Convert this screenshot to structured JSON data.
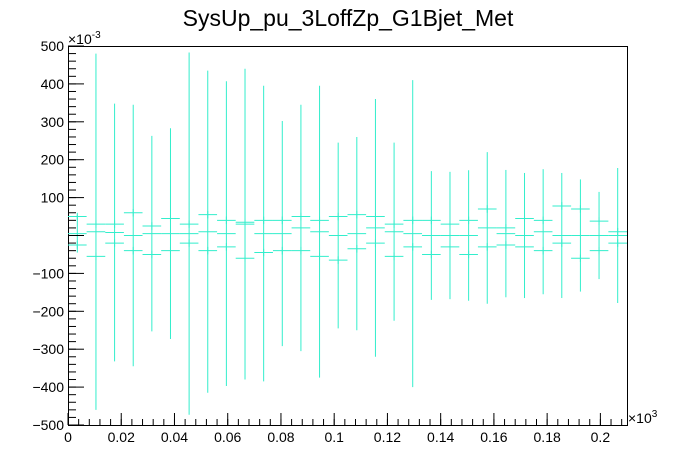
{
  "chart_data": {
    "type": "scatter",
    "title": "SysUp_pu_3LoffZp_G1Bjet_Met",
    "xlabel": "",
    "ylabel": "",
    "x_exponent_label": "×10",
    "x_exponent": "3",
    "y_exponent_label": "×10",
    "y_exponent": "-3",
    "xlim": [
      0,
      0.21
    ],
    "ylim": [
      -500,
      500
    ],
    "x_ticks": [
      {
        "value": 0,
        "label": "0"
      },
      {
        "value": 0.02,
        "label": "0.02"
      },
      {
        "value": 0.04,
        "label": "0.04"
      },
      {
        "value": 0.06,
        "label": "0.06"
      },
      {
        "value": 0.08,
        "label": "0.08"
      },
      {
        "value": 0.1,
        "label": "0.1"
      },
      {
        "value": 0.12,
        "label": "0.12"
      },
      {
        "value": 0.14,
        "label": "0.14"
      },
      {
        "value": 0.16,
        "label": "0.16"
      },
      {
        "value": 0.18,
        "label": "0.18"
      },
      {
        "value": 0.2,
        "label": "0.2"
      }
    ],
    "y_ticks": [
      {
        "value": -500,
        "label": "−500"
      },
      {
        "value": -400,
        "label": "−400"
      },
      {
        "value": -300,
        "label": "−300"
      },
      {
        "value": -200,
        "label": "−200"
      },
      {
        "value": -100,
        "label": "−100"
      },
      {
        "value": 100,
        "label": "100"
      },
      {
        "value": 200,
        "label": "200"
      },
      {
        "value": 300,
        "label": "300"
      },
      {
        "value": 400,
        "label": "400"
      },
      {
        "value": 500,
        "label": "500"
      }
    ],
    "grid": false,
    "color": "#33eecc",
    "bin_width": 0.007,
    "series": [
      {
        "points": [
          {
            "x": 0.0035,
            "y": 5,
            "err": 50
          },
          {
            "x": 0.0105,
            "y": 10,
            "err": 470
          },
          {
            "x": 0.0175,
            "y": 8,
            "err": 340
          },
          {
            "x": 0.0245,
            "y": 0,
            "err": 345
          },
          {
            "x": 0.0315,
            "y": 5,
            "err": 258
          },
          {
            "x": 0.0385,
            "y": 5,
            "err": 278
          },
          {
            "x": 0.0455,
            "y": 5,
            "err": 478
          },
          {
            "x": 0.0525,
            "y": 10,
            "err": 425
          },
          {
            "x": 0.0595,
            "y": 5,
            "err": 402
          },
          {
            "x": 0.0665,
            "y": 30,
            "err": 410
          },
          {
            "x": 0.0735,
            "y": 5,
            "err": 390
          },
          {
            "x": 0.0805,
            "y": 5,
            "err": 297
          },
          {
            "x": 0.0875,
            "y": 20,
            "err": 325
          },
          {
            "x": 0.0945,
            "y": 10,
            "err": 385
          },
          {
            "x": 0.1015,
            "y": 0,
            "err": 245
          },
          {
            "x": 0.1085,
            "y": 5,
            "err": 255
          },
          {
            "x": 0.1155,
            "y": 20,
            "err": 340
          },
          {
            "x": 0.1225,
            "y": 10,
            "err": 235
          },
          {
            "x": 0.1295,
            "y": 5,
            "err": 405
          },
          {
            "x": 0.1365,
            "y": 0,
            "err": 170
          },
          {
            "x": 0.1435,
            "y": 0,
            "err": 168
          },
          {
            "x": 0.1505,
            "y": 0,
            "err": 172
          },
          {
            "x": 0.1575,
            "y": 20,
            "err": 200
          },
          {
            "x": 0.1645,
            "y": 5,
            "err": 168
          },
          {
            "x": 0.1715,
            "y": 0,
            "err": 165
          },
          {
            "x": 0.1785,
            "y": 10,
            "err": 165
          },
          {
            "x": 0.1855,
            "y": 0,
            "err": 165
          },
          {
            "x": 0.1925,
            "y": 0,
            "err": 148
          },
          {
            "x": 0.1995,
            "y": 0,
            "err": 115
          },
          {
            "x": 0.2065,
            "y": 0,
            "err": 178
          }
        ]
      },
      {
        "points": [
          {
            "x": 0.0035,
            "y": 50,
            "err": 10
          },
          {
            "x": 0.0105,
            "y": -55,
            "err": 10
          },
          {
            "x": 0.0175,
            "y": 30,
            "err": 10
          },
          {
            "x": 0.0245,
            "y": 60,
            "err": 10
          },
          {
            "x": 0.0315,
            "y": -50,
            "err": 10
          },
          {
            "x": 0.0385,
            "y": 45,
            "err": 10
          },
          {
            "x": 0.0455,
            "y": 30,
            "err": 10
          },
          {
            "x": 0.0525,
            "y": 55,
            "err": 10
          },
          {
            "x": 0.0595,
            "y": -30,
            "err": 10
          },
          {
            "x": 0.0665,
            "y": -60,
            "err": 10
          },
          {
            "x": 0.0735,
            "y": 40,
            "err": 10
          },
          {
            "x": 0.0805,
            "y": -40,
            "err": 10
          },
          {
            "x": 0.0875,
            "y": 50,
            "err": 10
          },
          {
            "x": 0.0945,
            "y": -55,
            "err": 10
          },
          {
            "x": 0.1015,
            "y": -65,
            "err": 10
          },
          {
            "x": 0.1085,
            "y": 55,
            "err": 10
          },
          {
            "x": 0.1155,
            "y": -20,
            "err": 10
          },
          {
            "x": 0.1225,
            "y": -55,
            "err": 10
          },
          {
            "x": 0.1295,
            "y": 40,
            "err": 10
          },
          {
            "x": 0.1365,
            "y": -50,
            "err": 10
          },
          {
            "x": 0.1435,
            "y": 30,
            "err": 10
          },
          {
            "x": 0.1505,
            "y": -50,
            "err": 10
          },
          {
            "x": 0.1575,
            "y": 70,
            "err": 10
          },
          {
            "x": 0.1645,
            "y": 20,
            "err": 10
          },
          {
            "x": 0.1715,
            "y": 45,
            "err": 10
          },
          {
            "x": 0.1785,
            "y": -40,
            "err": 10
          },
          {
            "x": 0.1855,
            "y": 78,
            "err": 10
          },
          {
            "x": 0.1925,
            "y": 70,
            "err": 10
          },
          {
            "x": 0.1995,
            "y": 38,
            "err": 10
          },
          {
            "x": 0.2065,
            "y": 10,
            "err": 10
          }
        ]
      },
      {
        "points": [
          {
            "x": 0.0035,
            "y": -25,
            "err": 10
          },
          {
            "x": 0.0105,
            "y": 30,
            "err": 10
          },
          {
            "x": 0.0175,
            "y": -20,
            "err": 10
          },
          {
            "x": 0.0245,
            "y": -40,
            "err": 10
          },
          {
            "x": 0.0315,
            "y": 25,
            "err": 10
          },
          {
            "x": 0.0385,
            "y": -40,
            "err": 10
          },
          {
            "x": 0.0455,
            "y": -20,
            "err": 10
          },
          {
            "x": 0.0525,
            "y": -40,
            "err": 10
          },
          {
            "x": 0.0595,
            "y": 40,
            "err": 10
          },
          {
            "x": 0.0665,
            "y": 35,
            "err": 10
          },
          {
            "x": 0.0735,
            "y": -45,
            "err": 10
          },
          {
            "x": 0.0805,
            "y": 40,
            "err": 10
          },
          {
            "x": 0.0875,
            "y": -40,
            "err": 10
          },
          {
            "x": 0.0945,
            "y": 40,
            "err": 10
          },
          {
            "x": 0.1015,
            "y": 50,
            "err": 10
          },
          {
            "x": 0.1085,
            "y": -35,
            "err": 10
          },
          {
            "x": 0.1155,
            "y": 50,
            "err": 10
          },
          {
            "x": 0.1225,
            "y": 30,
            "err": 10
          },
          {
            "x": 0.1295,
            "y": -30,
            "err": 10
          },
          {
            "x": 0.1365,
            "y": 40,
            "err": 10
          },
          {
            "x": 0.1435,
            "y": -30,
            "err": 10
          },
          {
            "x": 0.1505,
            "y": 40,
            "err": 10
          },
          {
            "x": 0.1575,
            "y": -30,
            "err": 10
          },
          {
            "x": 0.1645,
            "y": -25,
            "err": 10
          },
          {
            "x": 0.1715,
            "y": -30,
            "err": 10
          },
          {
            "x": 0.1785,
            "y": 40,
            "err": 10
          },
          {
            "x": 0.1855,
            "y": -20,
            "err": 10
          },
          {
            "x": 0.1925,
            "y": -60,
            "err": 10
          },
          {
            "x": 0.1995,
            "y": -40,
            "err": 10
          },
          {
            "x": 0.2065,
            "y": -20,
            "err": 10
          }
        ]
      }
    ]
  }
}
